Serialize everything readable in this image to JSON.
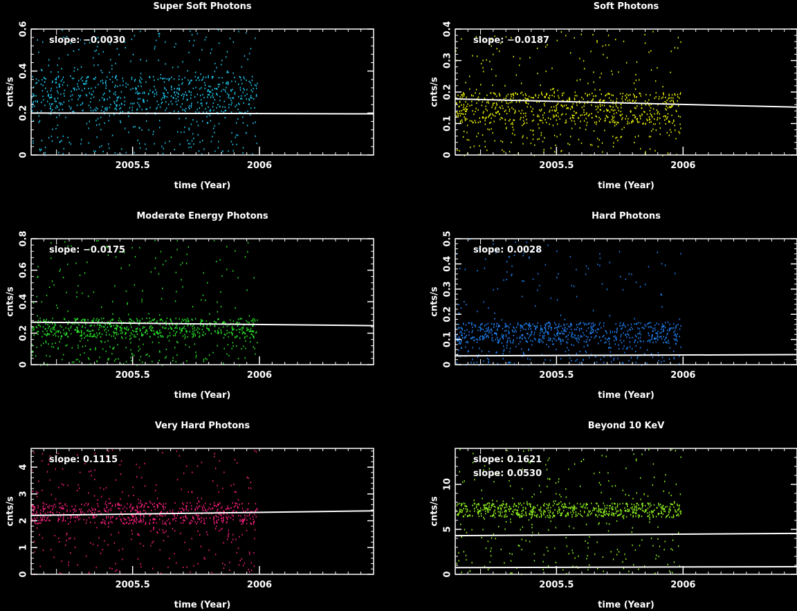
{
  "chart_data": [
    {
      "type": "scatter",
      "title": "Super Soft Photons",
      "xlabel": "time (Year)",
      "ylabel": "cnts/s",
      "xlim": [
        2005.1,
        2006.45
      ],
      "ylim": [
        0,
        0.6
      ],
      "xticks": [
        2005.5,
        2006
      ],
      "xtick_labels": [
        "2005.5",
        "2006"
      ],
      "yticks": [
        0,
        0.2,
        0.4,
        0.6
      ],
      "ytick_labels": [
        "0",
        "0.2",
        "0.4",
        "0.6"
      ],
      "color": "#1fc8f0",
      "slope_labels": [
        "slope: −0.0030"
      ],
      "data_x_range": [
        2005.1,
        2005.99
      ],
      "dense_band": [
        0.2,
        0.38
      ],
      "trend_lines": [
        {
          "x": [
            2005.1,
            2006.45
          ],
          "y": [
            0.2,
            0.196
          ]
        }
      ]
    },
    {
      "type": "scatter",
      "title": "Soft Photons",
      "xlabel": "time (Year)",
      "ylabel": "cnts/s",
      "xlim": [
        2005.1,
        2006.45
      ],
      "ylim": [
        0,
        0.4
      ],
      "xticks": [
        2005.5,
        2006
      ],
      "xtick_labels": [
        "2005.5",
        "2006"
      ],
      "yticks": [
        0,
        0.1,
        0.2,
        0.3,
        0.4
      ],
      "ytick_labels": [
        "0",
        "0.1",
        "0.2",
        "0.3",
        "0.4"
      ],
      "color": "#e6f000",
      "slope_labels": [
        "slope: −0.0187"
      ],
      "data_x_range": [
        2005.1,
        2005.99
      ],
      "dense_band": [
        0.1,
        0.2
      ],
      "trend_lines": [
        {
          "x": [
            2005.1,
            2006.45
          ],
          "y": [
            0.178,
            0.152
          ]
        }
      ]
    },
    {
      "type": "scatter",
      "title": "Moderate Energy Photons",
      "xlabel": "time (Year)",
      "ylabel": "cnts/s",
      "xlim": [
        2005.1,
        2006.45
      ],
      "ylim": [
        0,
        0.8
      ],
      "xticks": [
        2005.5,
        2006
      ],
      "xtick_labels": [
        "2005.5",
        "2006"
      ],
      "yticks": [
        0,
        0.2,
        0.4,
        0.6,
        0.8
      ],
      "ytick_labels": [
        "0",
        "0.2",
        "0.4",
        "0.6",
        "0.8"
      ],
      "color": "#28e028",
      "slope_labels": [
        "slope: −0.0175"
      ],
      "data_x_range": [
        2005.1,
        2005.99
      ],
      "dense_band": [
        0.18,
        0.3
      ],
      "trend_lines": [
        {
          "x": [
            2005.1,
            2006.45
          ],
          "y": [
            0.27,
            0.248
          ]
        }
      ]
    },
    {
      "type": "scatter",
      "title": "Hard Photons",
      "xlabel": "time (Year)",
      "ylabel": "cnts/s",
      "xlim": [
        2005.1,
        2006.45
      ],
      "ylim": [
        0,
        0.5
      ],
      "xticks": [
        2005.5,
        2006
      ],
      "xtick_labels": [
        "2005.5",
        "2006"
      ],
      "yticks": [
        0,
        0.1,
        0.2,
        0.3,
        0.4,
        0.5
      ],
      "ytick_labels": [
        "0",
        "0.1",
        "0.2",
        "0.3",
        "0.4",
        "0.5"
      ],
      "color": "#1e7ff0",
      "slope_labels": [
        "slope: 0.0028"
      ],
      "data_x_range": [
        2005.1,
        2005.99
      ],
      "dense_band": [
        0.09,
        0.17
      ],
      "trend_lines": [
        {
          "x": [
            2005.1,
            2006.45
          ],
          "y": [
            0.035,
            0.04
          ]
        }
      ]
    },
    {
      "type": "scatter",
      "title": "Very Hard  Photons",
      "xlabel": "time (Year)",
      "ylabel": "cnts/s",
      "xlim": [
        2005.1,
        2006.45
      ],
      "ylim": [
        0,
        4.7
      ],
      "xticks": [
        2005.5,
        2006
      ],
      "xtick_labels": [
        "2005.5",
        "2006"
      ],
      "yticks": [
        0,
        1,
        2,
        3,
        4
      ],
      "ytick_labels": [
        "0",
        "1",
        "2",
        "3",
        "4"
      ],
      "color": "#f01e78",
      "slope_labels": [
        "slope: 0.1115"
      ],
      "data_x_range": [
        2005.1,
        2005.99
      ],
      "dense_band": [
        1.9,
        2.7
      ],
      "trend_lines": [
        {
          "x": [
            2005.1,
            2006.45
          ],
          "y": [
            2.2,
            2.37
          ]
        }
      ]
    },
    {
      "type": "scatter",
      "title": "Beyond 10 KeV",
      "xlabel": "time (Year)",
      "ylabel": "cnts/s",
      "xlim": [
        2005.1,
        2006.45
      ],
      "ylim": [
        0,
        14
      ],
      "xticks": [
        2005.5,
        2006
      ],
      "xtick_labels": [
        "2005.5",
        "2006"
      ],
      "yticks": [
        0,
        5,
        10
      ],
      "ytick_labels": [
        "0",
        "5",
        "10"
      ],
      "color": "#8ef01e",
      "slope_labels": [
        "slope: 0.1621",
        "slope: 0.0530"
      ],
      "data_x_range": [
        2005.1,
        2005.99
      ],
      "dense_band": [
        6.4,
        8.0
      ],
      "trend_lines": [
        {
          "x": [
            2005.1,
            2006.45
          ],
          "y": [
            4.3,
            4.55
          ]
        },
        {
          "x": [
            2005.1,
            2006.45
          ],
          "y": [
            0.75,
            0.85
          ]
        }
      ]
    }
  ]
}
